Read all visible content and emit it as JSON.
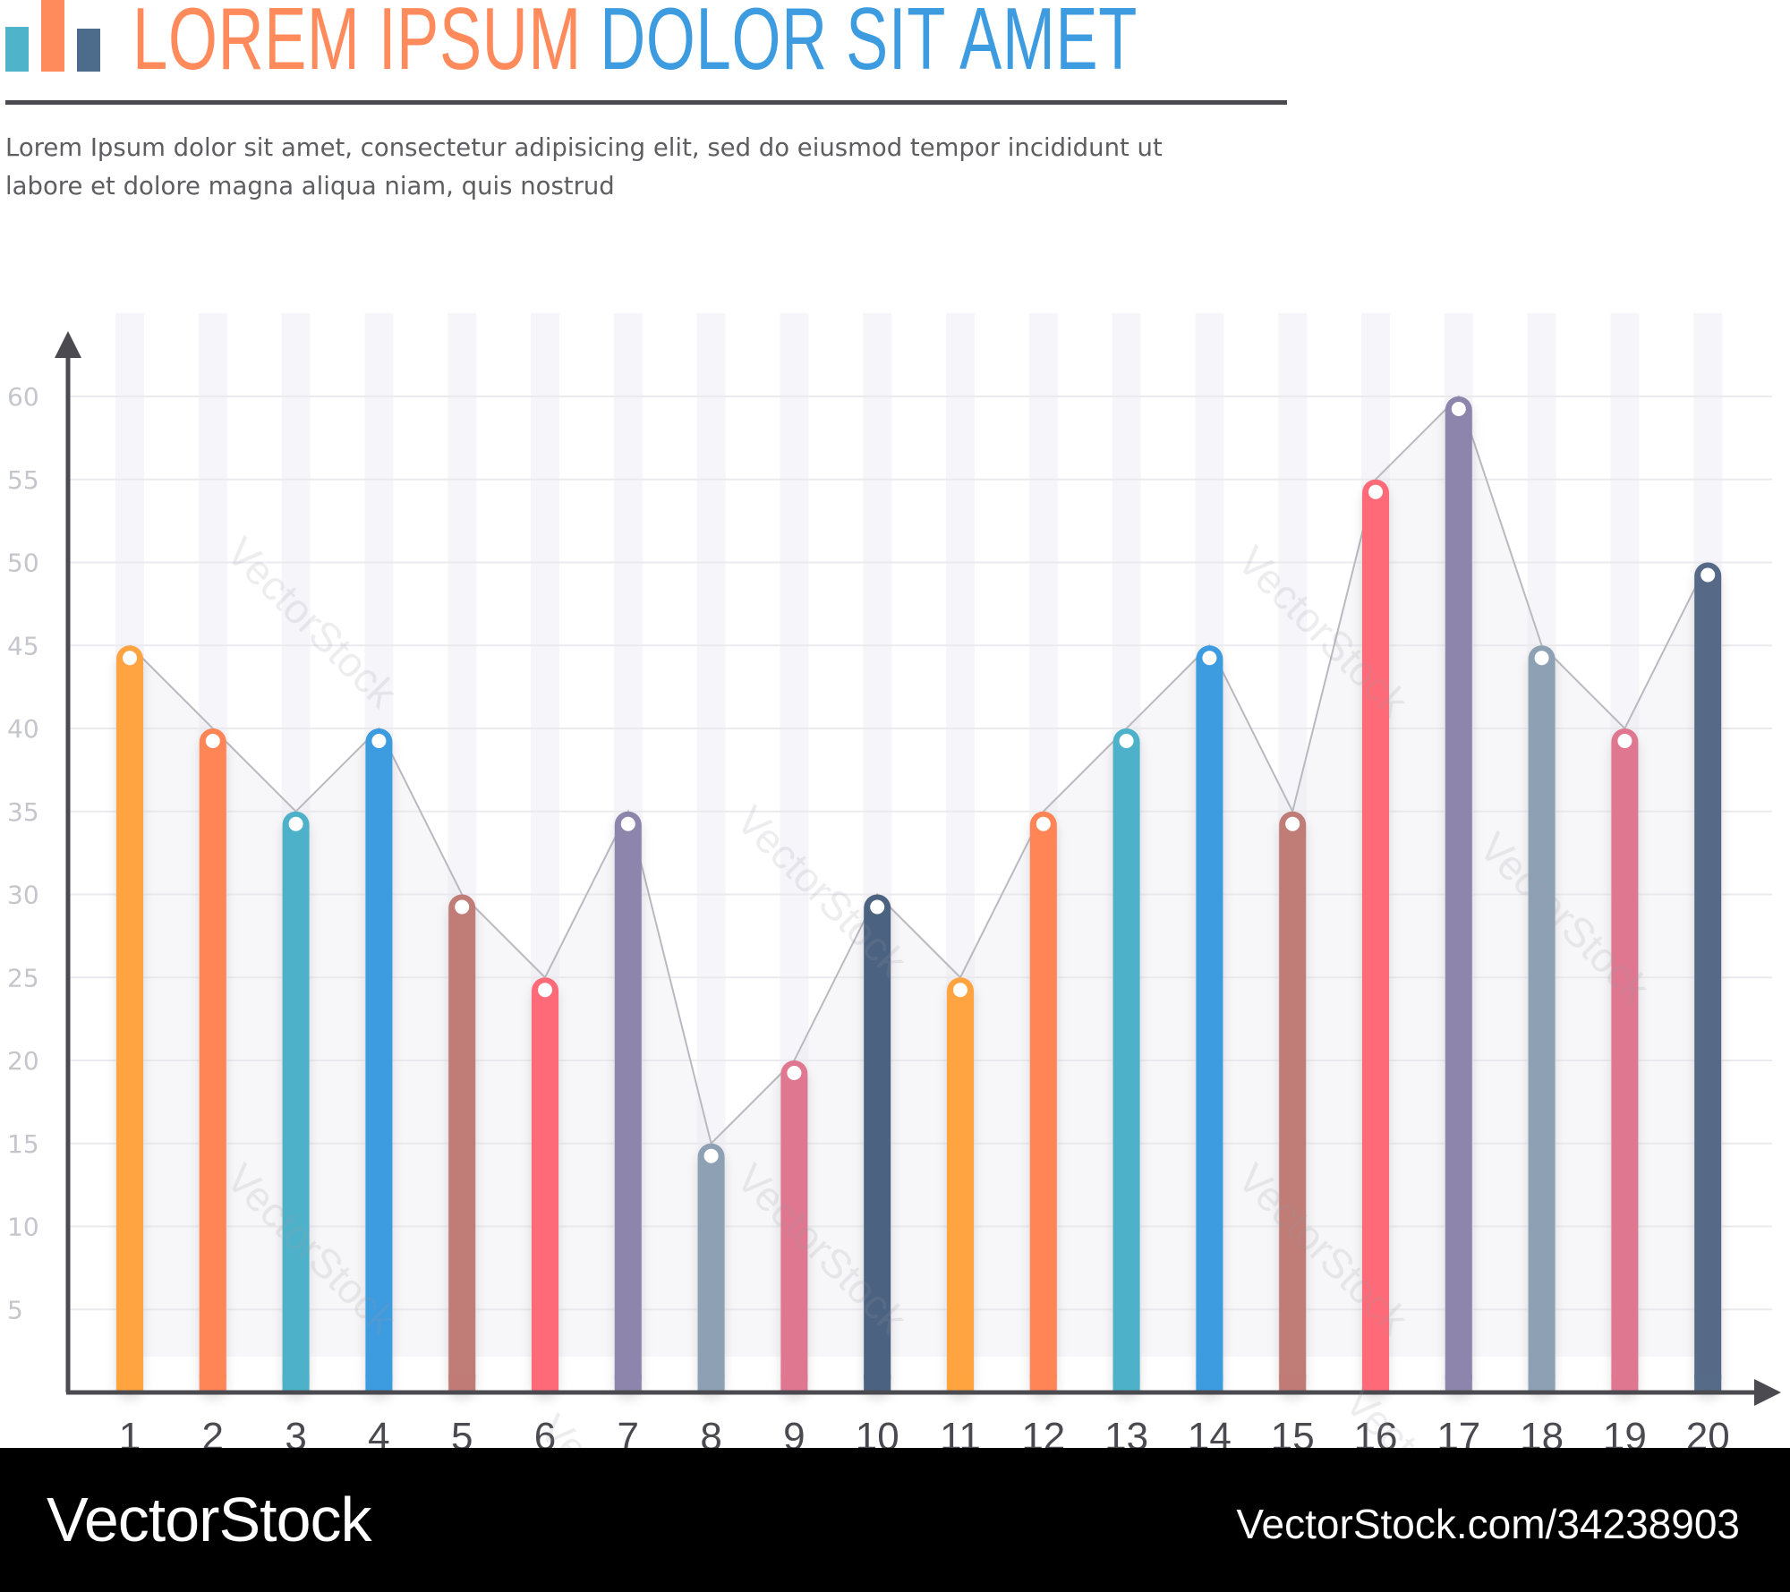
{
  "header": {
    "title_part1": "LOREM IPSUM",
    "title_part2": "DOLOR SIT AMET",
    "subtitle_line1": "Lorem Ipsum dolor sit amet, consectetur adipisicing elit, sed do eiusmod tempor incididunt ut",
    "subtitle_line2": "labore et dolore magna aliqua niam, quis nostrud",
    "logo_icon": "bar-chart-icon",
    "logo_colors": [
      "#4fb3c9",
      "#ff8a5b",
      "#4d6b8a"
    ]
  },
  "chart_data": {
    "type": "bar",
    "title": "",
    "xlabel": "",
    "ylabel": "",
    "categories": [
      "1",
      "2",
      "3",
      "4",
      "5",
      "6",
      "7",
      "8",
      "9",
      "10",
      "11",
      "12",
      "13",
      "14",
      "15",
      "16",
      "17",
      "18",
      "19",
      "20"
    ],
    "values": [
      45,
      40,
      35,
      40,
      30,
      25,
      35,
      15,
      20,
      30,
      25,
      35,
      40,
      45,
      35,
      55,
      60,
      45,
      40,
      50
    ],
    "bar_colors": [
      "#ffa43f",
      "#ff8456",
      "#4db2c9",
      "#3d9be0",
      "#c07b76",
      "#ff6a78",
      "#8d85ab",
      "#8ea1b4",
      "#df7790",
      "#4b6280",
      "#ffa43f",
      "#ff8456",
      "#4db2c9",
      "#3d9be0",
      "#c07b76",
      "#ff6a78",
      "#8d85ab",
      "#8ea1b4",
      "#df7790",
      "#566b87"
    ],
    "yticks": [
      5,
      10,
      15,
      20,
      25,
      30,
      35,
      40,
      45,
      50,
      55,
      60
    ],
    "ylim": [
      0,
      65
    ],
    "grid": true,
    "connecting_line": true,
    "marker": "white-dot-on-rounded-bar-top"
  },
  "watermark": {
    "text": "VectorStock"
  },
  "footer": {
    "brand": "VectorStock",
    "url": "VectorStock.com/34238903"
  }
}
